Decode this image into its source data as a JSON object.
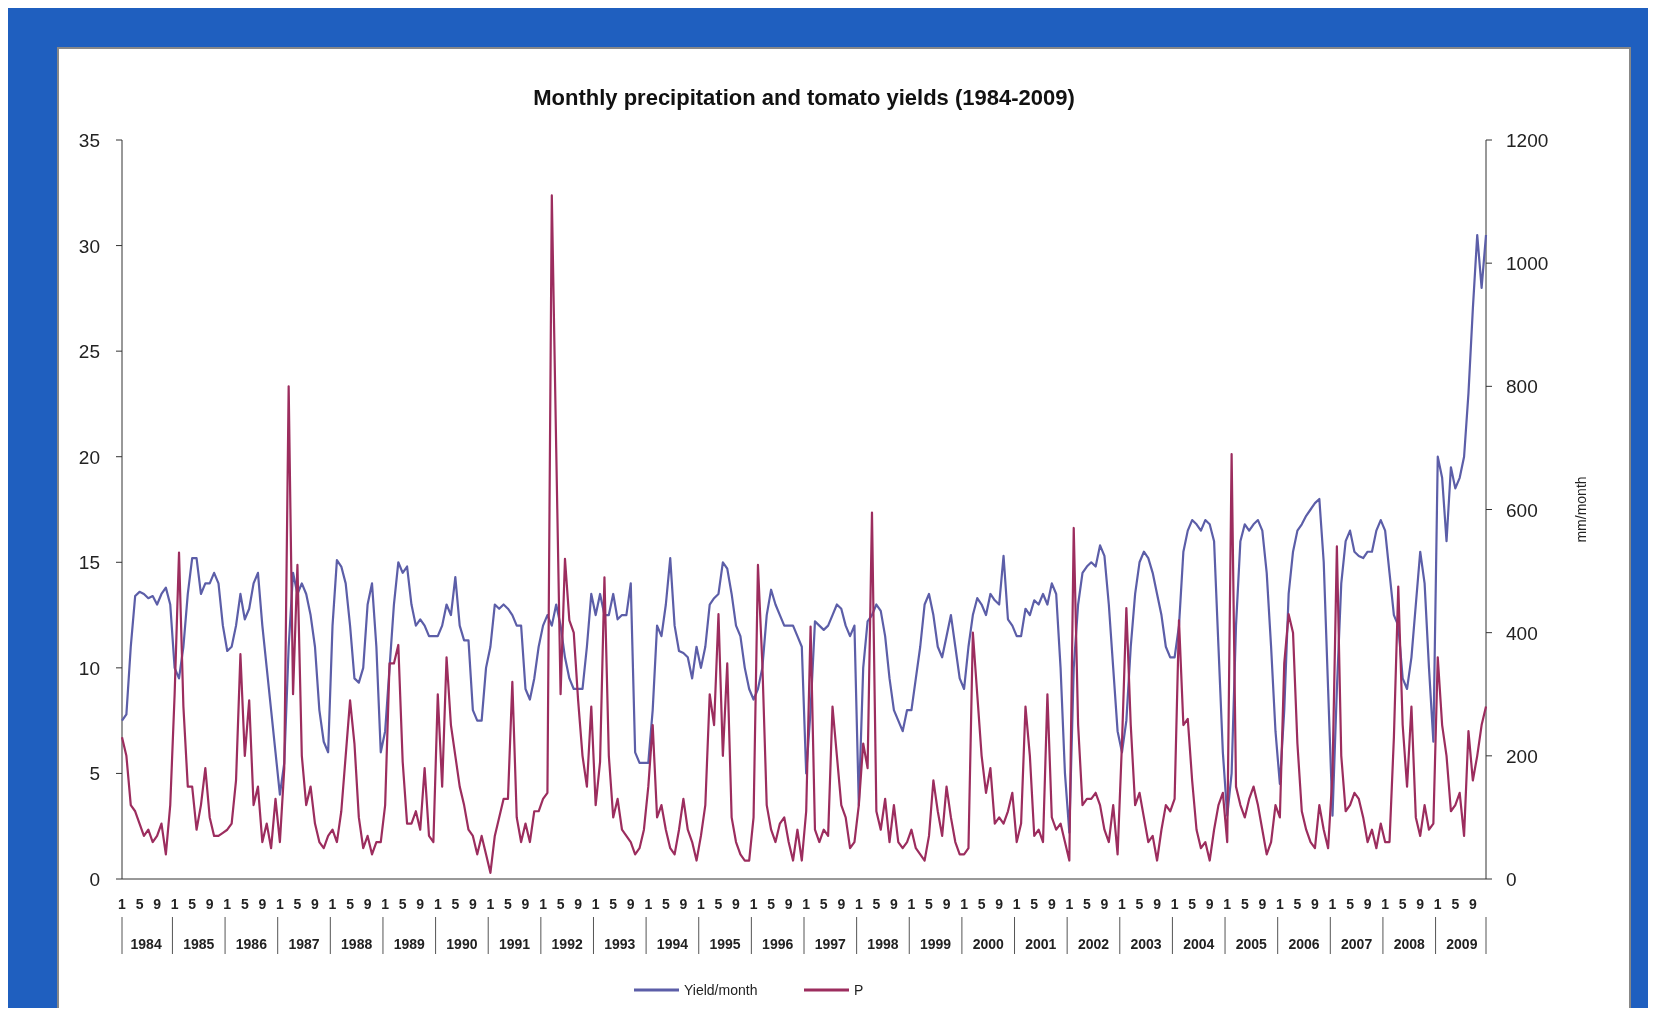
{
  "chart_data": {
    "type": "line",
    "title": "Monthly precipitation and tomato yields (1984-2009)",
    "y2label": "mm/month",
    "categories": [
      "1",
      null,
      null,
      null,
      "5",
      null,
      null,
      null,
      "9",
      null,
      null,
      null,
      "1",
      null,
      null,
      null,
      "5",
      null,
      null,
      null,
      "9",
      null,
      null,
      null,
      "1",
      null,
      null,
      null,
      "5",
      null,
      null,
      null,
      "9",
      null,
      null,
      null,
      "1",
      null,
      null,
      null,
      "5",
      null,
      null,
      null,
      "9",
      null,
      null,
      null,
      "1",
      null,
      null,
      null,
      "5",
      null,
      null,
      null,
      "9",
      null,
      null,
      null,
      "1",
      null,
      null,
      null,
      "5",
      null,
      null,
      null,
      "9",
      null,
      null,
      null,
      "1",
      null,
      null,
      null,
      "5",
      null,
      null,
      null,
      "9",
      null,
      null,
      null,
      "1",
      null,
      null,
      null,
      "5",
      null,
      null,
      null,
      "9",
      null,
      null,
      null,
      "1",
      null,
      null,
      null,
      "5",
      null,
      null,
      null,
      "9",
      null,
      null,
      null,
      "1",
      null,
      null,
      null,
      "5",
      null,
      null,
      null,
      "9",
      null,
      null,
      null,
      "1",
      null,
      null,
      null,
      "5",
      null,
      null,
      null,
      "9",
      null,
      null,
      null,
      "1",
      null,
      null,
      null,
      "5",
      null,
      null,
      null,
      "9",
      null,
      null,
      null,
      "1",
      null,
      null,
      null,
      "5",
      null,
      null,
      null,
      "9",
      null,
      null,
      null,
      "1",
      null,
      null,
      null,
      "5",
      null,
      null,
      null,
      "9",
      null,
      null,
      null,
      "1",
      null,
      null,
      null,
      "5",
      null,
      null,
      null,
      "9",
      null,
      null,
      null,
      "1",
      null,
      null,
      null,
      "5",
      null,
      null,
      null,
      "9",
      null,
      null,
      null,
      "1",
      null,
      null,
      null,
      "5",
      null,
      null,
      null,
      "9",
      null,
      null,
      null,
      "1",
      null,
      null,
      null,
      "5",
      null,
      null,
      null,
      "9",
      null,
      null,
      null,
      "1",
      null,
      null,
      null,
      "5",
      null,
      null,
      null,
      "9",
      null,
      null,
      null,
      "1",
      null,
      null,
      null,
      "5",
      null,
      null,
      null,
      "9",
      null,
      null,
      null,
      "1",
      null,
      null,
      null,
      "5",
      null,
      null,
      null,
      "9",
      null,
      null,
      null,
      "1",
      null,
      null,
      null,
      "5",
      null,
      null,
      null,
      "9",
      null,
      null,
      null,
      "1",
      null,
      null,
      null,
      "5",
      null,
      null,
      null,
      "9",
      null,
      null,
      null,
      "1",
      null,
      null,
      null,
      "5",
      null,
      null,
      null,
      "9",
      null,
      null,
      null,
      "1",
      null,
      null,
      null,
      "5",
      null,
      null,
      null,
      "9",
      null,
      null,
      null,
      "1",
      null,
      null,
      null,
      "5",
      null,
      null,
      null,
      "9",
      null,
      null,
      null
    ],
    "annotations": [
      "1984",
      "1985",
      "1986",
      "1987",
      "1988",
      "1989",
      "1990",
      "1991",
      "1992",
      "1993",
      "1994",
      "1995",
      "1996",
      "1997",
      "1998",
      "1999",
      "2000",
      "2001",
      "2002",
      "2003",
      "2004",
      "2005",
      "2006",
      "2007",
      "2008",
      "2009"
    ],
    "ylim": [
      0,
      35
    ],
    "yticks": [
      0,
      5,
      10,
      15,
      20,
      25,
      30,
      35
    ],
    "y2lim": [
      0,
      1200
    ],
    "y2ticks": [
      0,
      200,
      400,
      600,
      800,
      1000,
      1200
    ],
    "grid": false,
    "legend": "bottom",
    "series": [
      {
        "name": "Yield/month",
        "color": "#5c5ea8",
        "values": [
          7.5,
          7.8,
          11,
          13.4,
          13.6,
          13.5,
          13.3,
          13.4,
          13,
          13.5,
          13.8,
          13,
          10,
          9.5,
          11,
          13.5,
          15.2,
          15.2,
          13.5,
          14,
          14,
          14.5,
          14,
          12,
          10.8,
          11,
          12,
          13.5,
          12.3,
          12.8,
          14,
          14.5,
          12,
          10,
          8,
          6,
          4,
          5.5,
          11,
          14.5,
          13.5,
          14,
          13.5,
          12.5,
          11,
          8,
          6.5,
          6,
          12,
          15.1,
          14.8,
          14,
          12,
          9.5,
          9.3,
          10,
          13,
          14,
          11,
          6,
          7,
          10,
          13,
          15,
          14.5,
          14.8,
          13,
          12,
          12.3,
          12,
          11.5,
          11.5,
          11.5,
          12,
          13,
          12.5,
          14.3,
          12,
          11.3,
          11.3,
          8,
          7.5,
          7.5,
          10,
          11,
          13,
          12.8,
          13,
          12.8,
          12.5,
          12,
          12,
          9,
          8.5,
          9.5,
          11,
          12,
          12.5,
          12,
          13,
          12,
          10.5,
          9.5,
          9,
          9,
          9,
          11,
          13.5,
          12.5,
          13.5,
          12.5,
          12.5,
          13.5,
          12.3,
          12.5,
          12.5,
          14,
          6,
          5.5,
          5.5,
          5.5,
          8,
          12,
          11.5,
          13,
          15.2,
          12,
          10.8,
          10.7,
          10.5,
          9.5,
          11,
          10,
          11,
          13,
          13.3,
          13.5,
          15,
          14.7,
          13.5,
          12,
          11.5,
          10,
          9,
          8.5,
          9,
          10,
          12.5,
          13.7,
          13,
          12.5,
          12,
          12,
          12,
          11.5,
          11,
          5,
          8,
          12.2,
          12,
          11.8,
          12,
          12.5,
          13,
          12.8,
          12,
          11.5,
          12,
          3.5,
          10,
          12.2,
          12.5,
          13,
          12.7,
          11.5,
          9.5,
          8,
          7.5,
          7,
          8,
          8,
          9.5,
          11,
          13,
          13.5,
          12.5,
          11,
          10.5,
          11.5,
          12.5,
          11,
          9.5,
          9,
          11,
          12.5,
          13.3,
          13,
          12.5,
          13.5,
          13.2,
          13,
          15.3,
          12.3,
          12,
          11.5,
          11.5,
          12.8,
          12.5,
          13.2,
          13,
          13.5,
          13,
          14,
          13.5,
          10,
          5,
          2.2,
          10,
          13,
          14.5,
          14.8,
          15,
          14.8,
          15.8,
          15.3,
          13,
          10,
          7,
          6,
          7.5,
          11,
          13.5,
          15,
          15.5,
          15.2,
          14.5,
          13.5,
          12.5,
          11,
          10.5,
          10.5,
          12,
          15.5,
          16.5,
          17,
          16.8,
          16.5,
          17,
          16.8,
          16,
          11,
          6,
          3,
          5,
          12,
          16,
          16.8,
          16.5,
          16.8,
          17,
          16.5,
          14.5,
          11,
          7,
          4.5,
          8,
          13.5,
          15.5,
          16.5,
          16.8,
          17.2,
          17.5,
          17.8,
          18,
          15,
          9,
          3,
          9,
          14,
          16,
          16.5,
          15.5,
          15.3,
          15.2,
          15.5,
          15.5,
          16.5,
          17,
          16.5,
          14.5,
          12.5,
          12,
          9.5,
          9,
          10.5,
          13,
          15.5,
          14,
          10,
          6.5,
          20,
          19,
          16,
          19.5,
          18.5,
          19,
          20,
          23,
          27,
          30.5,
          28,
          30.5
        ]
      },
      {
        "name": "P",
        "color": "#9c2d5e",
        "axis": "y2",
        "values": [
          230,
          200,
          120,
          110,
          90,
          70,
          80,
          60,
          70,
          90,
          40,
          120,
          300,
          530,
          280,
          150,
          150,
          80,
          120,
          180,
          100,
          70,
          70,
          75,
          80,
          90,
          160,
          365,
          200,
          290,
          120,
          150,
          60,
          90,
          50,
          130,
          60,
          180,
          800,
          300,
          510,
          200,
          120,
          150,
          90,
          60,
          50,
          70,
          80,
          60,
          110,
          200,
          290,
          220,
          100,
          50,
          70,
          40,
          60,
          60,
          120,
          350,
          350,
          380,
          190,
          90,
          90,
          110,
          80,
          180,
          70,
          60,
          300,
          150,
          360,
          250,
          200,
          150,
          120,
          80,
          70,
          40,
          70,
          40,
          10,
          70,
          100,
          130,
          130,
          320,
          100,
          60,
          90,
          60,
          110,
          110,
          130,
          140,
          1110,
          700,
          300,
          520,
          420,
          400,
          290,
          200,
          150,
          280,
          120,
          190,
          490,
          200,
          100,
          130,
          80,
          70,
          60,
          40,
          50,
          80,
          150,
          250,
          100,
          120,
          80,
          50,
          40,
          80,
          130,
          80,
          60,
          30,
          70,
          120,
          300,
          250,
          430,
          200,
          350,
          100,
          60,
          40,
          30,
          30,
          100,
          510,
          350,
          120,
          80,
          60,
          90,
          100,
          60,
          30,
          80,
          30,
          110,
          410,
          80,
          60,
          80,
          70,
          280,
          200,
          120,
          100,
          50,
          60,
          120,
          220,
          180,
          595,
          110,
          80,
          130,
          60,
          120,
          60,
          50,
          60,
          80,
          50,
          40,
          30,
          70,
          160,
          110,
          70,
          150,
          100,
          60,
          40,
          40,
          50,
          400,
          300,
          200,
          140,
          180,
          90,
          100,
          90,
          110,
          140,
          60,
          90,
          280,
          200,
          70,
          80,
          60,
          300,
          100,
          80,
          90,
          60,
          30,
          570,
          250,
          120,
          130,
          130,
          140,
          120,
          80,
          60,
          120,
          40,
          220,
          440,
          250,
          120,
          140,
          100,
          60,
          70,
          30,
          80,
          120,
          110,
          130,
          420,
          250,
          260,
          160,
          80,
          50,
          60,
          30,
          80,
          120,
          140,
          60,
          690,
          150,
          120,
          100,
          130,
          150,
          120,
          80,
          40,
          60,
          120,
          100,
          350,
          430,
          400,
          220,
          110,
          80,
          60,
          50,
          120,
          80,
          50,
          170,
          540,
          200,
          110,
          120,
          140,
          130,
          100,
          60,
          80,
          50,
          90,
          60,
          60,
          230,
          475,
          250,
          150,
          280,
          100,
          70,
          120,
          80,
          90,
          360,
          250,
          200,
          110,
          120,
          140,
          70,
          240,
          160,
          200,
          250,
          280
        ]
      }
    ]
  }
}
